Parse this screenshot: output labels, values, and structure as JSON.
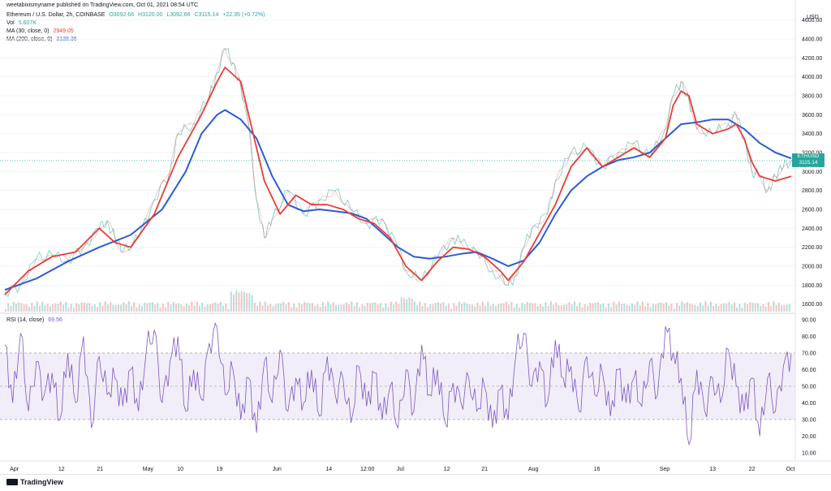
{
  "header": {
    "publisher": "weetabixismyname published on TradingView.com, Oct 01, 2021 08:54 UTC",
    "symbol": "Ethereum / U.S. Dollar, 2h, COINBASE",
    "ohlc": [
      "O3092.66",
      "H3120.00",
      "L3092.66",
      "C3115.14",
      "+22.35 (+0.72%)"
    ],
    "vol_label": "Vol",
    "vol_value": "5.607K",
    "ma30_label": "MA (30, close, 0)",
    "ma30_value": "2949.05",
    "ma200_label": "MA (200, close, 0)",
    "ma200_value": "3138.36",
    "rsi_label": "RSI (14, close)",
    "rsi_value": "69.56",
    "currency": "USD"
  },
  "price_badge": {
    "symbol": "ETHUSD",
    "price": "3115.14",
    "countdown": "01:05:04"
  },
  "colors": {
    "up": "#26a69a",
    "down": "#ef5350",
    "ma30": "#ef3b36",
    "ma200": "#2a5bd7",
    "rsi": "#7e57c2",
    "badge": "#26a69a"
  },
  "footer": {
    "brand": "TradingView"
  },
  "chart_data": {
    "type": "line",
    "x_ticks": [
      "Apr",
      "12",
      "21",
      "May",
      "10",
      "19",
      "Jun",
      "14",
      "12:00",
      "Jul",
      "12",
      "21",
      "Aug",
      "16",
      "Sep",
      "13",
      "22",
      "Oct"
    ],
    "price_axis": {
      "ticks": [
        1600,
        1800,
        2000,
        2200,
        2400,
        2600,
        2800,
        3000,
        3200,
        3400,
        3600,
        3800,
        4000,
        4200,
        4400,
        4600
      ],
      "ylim": [
        1520,
        4640
      ],
      "last": 3115.14
    },
    "rsi_axis": {
      "ticks": [
        10,
        20,
        30,
        40,
        50,
        60,
        70,
        80,
        90
      ],
      "ylim": [
        6,
        92
      ],
      "upper_band": 70,
      "middle": 50,
      "lower_band": 30
    },
    "price_series": [
      {
        "t": 0,
        "v": 1720
      },
      {
        "t": 2,
        "v": 1800
      },
      {
        "t": 4,
        "v": 2080
      },
      {
        "t": 6,
        "v": 2120
      },
      {
        "t": 8,
        "v": 2060
      },
      {
        "t": 10,
        "v": 2200
      },
      {
        "t": 12,
        "v": 2400
      },
      {
        "t": 13,
        "v": 2480
      },
      {
        "t": 14,
        "v": 2300
      },
      {
        "t": 15,
        "v": 2150
      },
      {
        "t": 17,
        "v": 2300
      },
      {
        "t": 19,
        "v": 2700
      },
      {
        "t": 21,
        "v": 3000
      },
      {
        "t": 22,
        "v": 3400
      },
      {
        "t": 24,
        "v": 3500
      },
      {
        "t": 26,
        "v": 3800
      },
      {
        "t": 27,
        "v": 4050
      },
      {
        "t": 28,
        "v": 4300
      },
      {
        "t": 29,
        "v": 4150
      },
      {
        "t": 30,
        "v": 3900
      },
      {
        "t": 31,
        "v": 3500
      },
      {
        "t": 32,
        "v": 2700
      },
      {
        "t": 33,
        "v": 2300
      },
      {
        "t": 34,
        "v": 2500
      },
      {
        "t": 36,
        "v": 2800
      },
      {
        "t": 38,
        "v": 2550
      },
      {
        "t": 40,
        "v": 2700
      },
      {
        "t": 42,
        "v": 2800
      },
      {
        "t": 44,
        "v": 2600
      },
      {
        "t": 46,
        "v": 2450
      },
      {
        "t": 48,
        "v": 2500
      },
      {
        "t": 50,
        "v": 2200
      },
      {
        "t": 51,
        "v": 1950
      },
      {
        "t": 53,
        "v": 1850
      },
      {
        "t": 55,
        "v": 2100
      },
      {
        "t": 57,
        "v": 2300
      },
      {
        "t": 58,
        "v": 2250
      },
      {
        "t": 60,
        "v": 2150
      },
      {
        "t": 62,
        "v": 1950
      },
      {
        "t": 64,
        "v": 1800
      },
      {
        "t": 65,
        "v": 1900
      },
      {
        "t": 66,
        "v": 2200
      },
      {
        "t": 67,
        "v": 2400
      },
      {
        "t": 69,
        "v": 2550
      },
      {
        "t": 70,
        "v": 2900
      },
      {
        "t": 72,
        "v": 3200
      },
      {
        "t": 74,
        "v": 3250
      },
      {
        "t": 76,
        "v": 3050
      },
      {
        "t": 78,
        "v": 3200
      },
      {
        "t": 80,
        "v": 3300
      },
      {
        "t": 82,
        "v": 3150
      },
      {
        "t": 84,
        "v": 3450
      },
      {
        "t": 85,
        "v": 3800
      },
      {
        "t": 86,
        "v": 3950
      },
      {
        "t": 87,
        "v": 3750
      },
      {
        "t": 88,
        "v": 3450
      },
      {
        "t": 90,
        "v": 3400
      },
      {
        "t": 92,
        "v": 3500
      },
      {
        "t": 93,
        "v": 3600
      },
      {
        "t": 94,
        "v": 3350
      },
      {
        "t": 95,
        "v": 3000
      },
      {
        "t": 96,
        "v": 2950
      },
      {
        "t": 97,
        "v": 2800
      },
      {
        "t": 98,
        "v": 2950
      },
      {
        "t": 99,
        "v": 3050
      },
      {
        "t": 100,
        "v": 3115
      }
    ],
    "ma30_series": [
      {
        "t": 0,
        "v": 1700
      },
      {
        "t": 3,
        "v": 1950
      },
      {
        "t": 6,
        "v": 2100
      },
      {
        "t": 9,
        "v": 2150
      },
      {
        "t": 12,
        "v": 2400
      },
      {
        "t": 14,
        "v": 2250
      },
      {
        "t": 16,
        "v": 2200
      },
      {
        "t": 19,
        "v": 2550
      },
      {
        "t": 22,
        "v": 3150
      },
      {
        "t": 25,
        "v": 3600
      },
      {
        "t": 27,
        "v": 3950
      },
      {
        "t": 28,
        "v": 4100
      },
      {
        "t": 30,
        "v": 3950
      },
      {
        "t": 31,
        "v": 3600
      },
      {
        "t": 33,
        "v": 2900
      },
      {
        "t": 35,
        "v": 2550
      },
      {
        "t": 37,
        "v": 2750
      },
      {
        "t": 39,
        "v": 2650
      },
      {
        "t": 41,
        "v": 2650
      },
      {
        "t": 43,
        "v": 2600
      },
      {
        "t": 45,
        "v": 2500
      },
      {
        "t": 47,
        "v": 2450
      },
      {
        "t": 49,
        "v": 2300
      },
      {
        "t": 51,
        "v": 2000
      },
      {
        "t": 53,
        "v": 1850
      },
      {
        "t": 55,
        "v": 2050
      },
      {
        "t": 57,
        "v": 2200
      },
      {
        "t": 59,
        "v": 2180
      },
      {
        "t": 61,
        "v": 2100
      },
      {
        "t": 63,
        "v": 1950
      },
      {
        "t": 64,
        "v": 1850
      },
      {
        "t": 66,
        "v": 2050
      },
      {
        "t": 68,
        "v": 2350
      },
      {
        "t": 70,
        "v": 2650
      },
      {
        "t": 72,
        "v": 3050
      },
      {
        "t": 74,
        "v": 3250
      },
      {
        "t": 76,
        "v": 3050
      },
      {
        "t": 78,
        "v": 3150
      },
      {
        "t": 80,
        "v": 3250
      },
      {
        "t": 82,
        "v": 3150
      },
      {
        "t": 84,
        "v": 3350
      },
      {
        "t": 85,
        "v": 3700
      },
      {
        "t": 86,
        "v": 3850
      },
      {
        "t": 87,
        "v": 3800
      },
      {
        "t": 88,
        "v": 3500
      },
      {
        "t": 90,
        "v": 3400
      },
      {
        "t": 92,
        "v": 3450
      },
      {
        "t": 93,
        "v": 3500
      },
      {
        "t": 94,
        "v": 3350
      },
      {
        "t": 95,
        "v": 3100
      },
      {
        "t": 96,
        "v": 2950
      },
      {
        "t": 98,
        "v": 2900
      },
      {
        "t": 100,
        "v": 2949
      }
    ],
    "ma200_series": [
      {
        "t": 0,
        "v": 1750
      },
      {
        "t": 4,
        "v": 1870
      },
      {
        "t": 8,
        "v": 2050
      },
      {
        "t": 12,
        "v": 2200
      },
      {
        "t": 16,
        "v": 2330
      },
      {
        "t": 20,
        "v": 2600
      },
      {
        "t": 23,
        "v": 3000
      },
      {
        "t": 25,
        "v": 3400
      },
      {
        "t": 27,
        "v": 3600
      },
      {
        "t": 28,
        "v": 3650
      },
      {
        "t": 30,
        "v": 3550
      },
      {
        "t": 32,
        "v": 3350
      },
      {
        "t": 34,
        "v": 2950
      },
      {
        "t": 36,
        "v": 2650
      },
      {
        "t": 38,
        "v": 2580
      },
      {
        "t": 40,
        "v": 2600
      },
      {
        "t": 42,
        "v": 2580
      },
      {
        "t": 44,
        "v": 2560
      },
      {
        "t": 46,
        "v": 2500
      },
      {
        "t": 48,
        "v": 2350
      },
      {
        "t": 50,
        "v": 2200
      },
      {
        "t": 52,
        "v": 2100
      },
      {
        "t": 54,
        "v": 2080
      },
      {
        "t": 56,
        "v": 2100
      },
      {
        "t": 58,
        "v": 2130
      },
      {
        "t": 60,
        "v": 2150
      },
      {
        "t": 62,
        "v": 2080
      },
      {
        "t": 64,
        "v": 2000
      },
      {
        "t": 66,
        "v": 2060
      },
      {
        "t": 68,
        "v": 2250
      },
      {
        "t": 70,
        "v": 2550
      },
      {
        "t": 72,
        "v": 2800
      },
      {
        "t": 74,
        "v": 2950
      },
      {
        "t": 76,
        "v": 3050
      },
      {
        "t": 78,
        "v": 3120
      },
      {
        "t": 80,
        "v": 3150
      },
      {
        "t": 82,
        "v": 3200
      },
      {
        "t": 84,
        "v": 3350
      },
      {
        "t": 86,
        "v": 3500
      },
      {
        "t": 88,
        "v": 3520
      },
      {
        "t": 90,
        "v": 3550
      },
      {
        "t": 92,
        "v": 3550
      },
      {
        "t": 94,
        "v": 3450
      },
      {
        "t": 96,
        "v": 3300
      },
      {
        "t": 98,
        "v": 3200
      },
      {
        "t": 100,
        "v": 3138
      }
    ],
    "rsi_series": [
      {
        "t": 0,
        "v": 75
      },
      {
        "t": 1,
        "v": 40
      },
      {
        "t": 2,
        "v": 82
      },
      {
        "t": 3,
        "v": 35
      },
      {
        "t": 4,
        "v": 65
      },
      {
        "t": 5,
        "v": 45
      },
      {
        "t": 6,
        "v": 58
      },
      {
        "t": 7,
        "v": 30
      },
      {
        "t": 8,
        "v": 70
      },
      {
        "t": 9,
        "v": 40
      },
      {
        "t": 10,
        "v": 80
      },
      {
        "t": 11,
        "v": 25
      },
      {
        "t": 12,
        "v": 68
      },
      {
        "t": 13,
        "v": 45
      },
      {
        "t": 14,
        "v": 55
      },
      {
        "t": 15,
        "v": 38
      },
      {
        "t": 16,
        "v": 60
      },
      {
        "t": 17,
        "v": 35
      },
      {
        "t": 18,
        "v": 72
      },
      {
        "t": 19,
        "v": 84
      },
      {
        "t": 20,
        "v": 40
      },
      {
        "t": 21,
        "v": 65
      },
      {
        "t": 22,
        "v": 80
      },
      {
        "t": 23,
        "v": 35
      },
      {
        "t": 24,
        "v": 60
      },
      {
        "t": 25,
        "v": 42
      },
      {
        "t": 26,
        "v": 76
      },
      {
        "t": 27,
        "v": 85
      },
      {
        "t": 28,
        "v": 45
      },
      {
        "t": 29,
        "v": 60
      },
      {
        "t": 30,
        "v": 30
      },
      {
        "t": 31,
        "v": 55
      },
      {
        "t": 32,
        "v": 22
      },
      {
        "t": 33,
        "v": 65
      },
      {
        "t": 34,
        "v": 40
      },
      {
        "t": 35,
        "v": 72
      },
      {
        "t": 36,
        "v": 35
      },
      {
        "t": 37,
        "v": 55
      },
      {
        "t": 38,
        "v": 40
      },
      {
        "t": 39,
        "v": 60
      },
      {
        "t": 40,
        "v": 32
      },
      {
        "t": 41,
        "v": 68
      },
      {
        "t": 42,
        "v": 45
      },
      {
        "t": 43,
        "v": 55
      },
      {
        "t": 44,
        "v": 28
      },
      {
        "t": 45,
        "v": 62
      },
      {
        "t": 46,
        "v": 38
      },
      {
        "t": 47,
        "v": 58
      },
      {
        "t": 48,
        "v": 30
      },
      {
        "t": 49,
        "v": 50
      },
      {
        "t": 50,
        "v": 25
      },
      {
        "t": 51,
        "v": 60
      },
      {
        "t": 52,
        "v": 35
      },
      {
        "t": 53,
        "v": 75
      },
      {
        "t": 54,
        "v": 45
      },
      {
        "t": 55,
        "v": 60
      },
      {
        "t": 56,
        "v": 28
      },
      {
        "t": 57,
        "v": 52
      },
      {
        "t": 58,
        "v": 40
      },
      {
        "t": 59,
        "v": 55
      },
      {
        "t": 60,
        "v": 35
      },
      {
        "t": 61,
        "v": 50
      },
      {
        "t": 62,
        "v": 25
      },
      {
        "t": 63,
        "v": 48
      },
      {
        "t": 64,
        "v": 30
      },
      {
        "t": 65,
        "v": 70
      },
      {
        "t": 66,
        "v": 82
      },
      {
        "t": 67,
        "v": 50
      },
      {
        "t": 68,
        "v": 65
      },
      {
        "t": 69,
        "v": 40
      },
      {
        "t": 70,
        "v": 78
      },
      {
        "t": 71,
        "v": 55
      },
      {
        "t": 72,
        "v": 62
      },
      {
        "t": 73,
        "v": 35
      },
      {
        "t": 74,
        "v": 68
      },
      {
        "t": 75,
        "v": 45
      },
      {
        "t": 76,
        "v": 58
      },
      {
        "t": 77,
        "v": 32
      },
      {
        "t": 78,
        "v": 60
      },
      {
        "t": 79,
        "v": 40
      },
      {
        "t": 80,
        "v": 55
      },
      {
        "t": 81,
        "v": 38
      },
      {
        "t": 82,
        "v": 65
      },
      {
        "t": 83,
        "v": 45
      },
      {
        "t": 84,
        "v": 86
      },
      {
        "t": 85,
        "v": 70
      },
      {
        "t": 86,
        "v": 55
      },
      {
        "t": 87,
        "v": 15
      },
      {
        "t": 88,
        "v": 60
      },
      {
        "t": 89,
        "v": 35
      },
      {
        "t": 90,
        "v": 55
      },
      {
        "t": 91,
        "v": 40
      },
      {
        "t": 92,
        "v": 72
      },
      {
        "t": 93,
        "v": 50
      },
      {
        "t": 94,
        "v": 35
      },
      {
        "t": 95,
        "v": 55
      },
      {
        "t": 96,
        "v": 20
      },
      {
        "t": 97,
        "v": 55
      },
      {
        "t": 98,
        "v": 35
      },
      {
        "t": 99,
        "v": 62
      },
      {
        "t": 100,
        "v": 69.56
      }
    ]
  }
}
